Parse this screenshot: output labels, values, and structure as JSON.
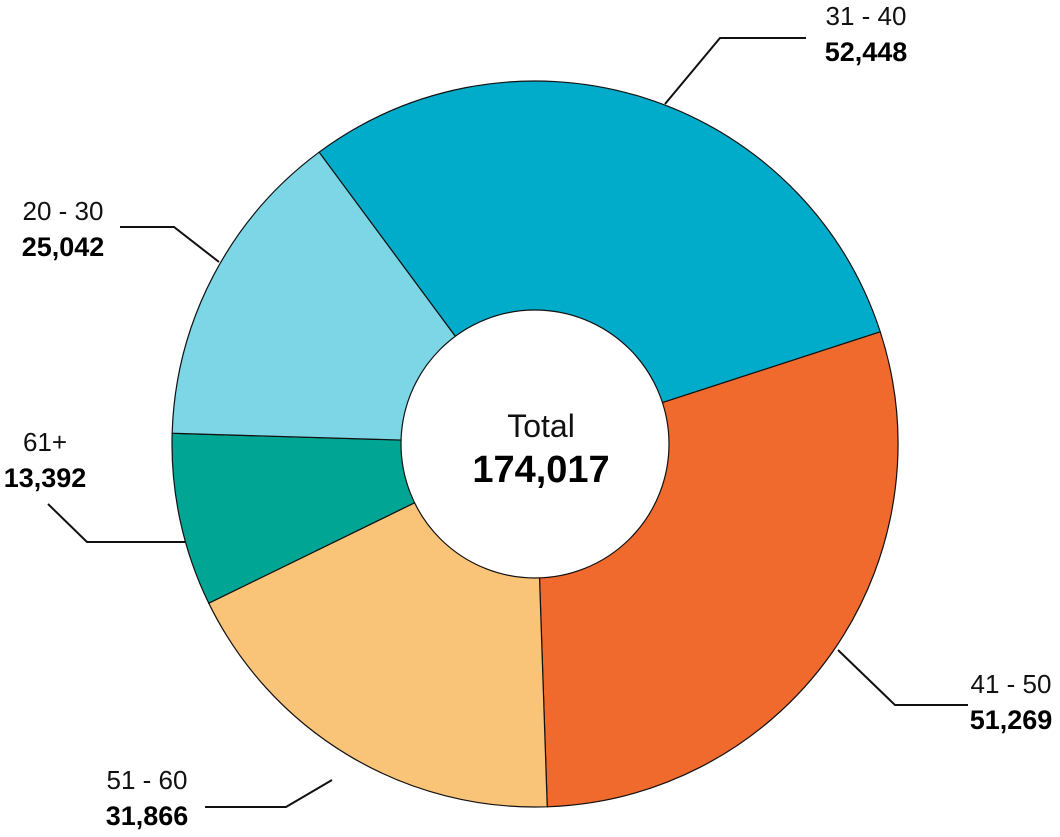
{
  "chart_data": {
    "type": "pie",
    "title": "",
    "center_label": "Total",
    "center_value": "174,017",
    "slices": [
      {
        "label": "31 - 40",
        "value": 52448,
        "value_text": "52,448",
        "color": "#00acca"
      },
      {
        "label": "41 - 50",
        "value": 51269,
        "value_text": "51,269",
        "color": "#f0692d"
      },
      {
        "label": "51 - 60",
        "value": 31866,
        "value_text": "31,866",
        "color": "#fac478"
      },
      {
        "label": "61+",
        "value": 13392,
        "value_text": "13,392",
        "color": "#00a693"
      },
      {
        "label": "20 - 30",
        "value": 25042,
        "value_text": "25,042",
        "color": "#7cd6e5"
      }
    ]
  }
}
